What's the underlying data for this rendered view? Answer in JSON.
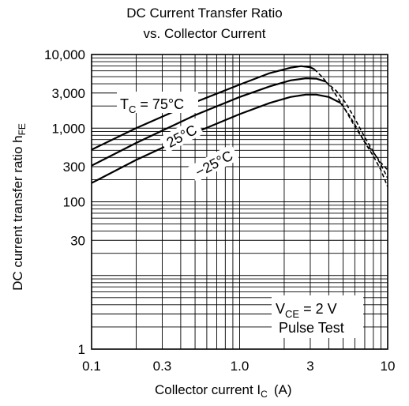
{
  "chart_data": {
    "type": "line",
    "title": "DC Current Transfer Ratio",
    "subtitle": "vs. Collector Current",
    "xlabel": {
      "text": "Collector current  I",
      "sub": "C",
      "unit": "(A)"
    },
    "ylabel": {
      "text": "DC current transfer ratio  h",
      "sub": "FE"
    },
    "xscale": "log",
    "yscale": "log",
    "xlim": [
      0.1,
      10
    ],
    "ylim": [
      1,
      10000
    ],
    "xticks": [
      {
        "value": 0.1,
        "label": "0.1"
      },
      {
        "value": 0.3,
        "label": "0.3"
      },
      {
        "value": 1,
        "label": "1.0"
      },
      {
        "value": 3,
        "label": "3"
      },
      {
        "value": 10,
        "label": "10"
      }
    ],
    "yticks": [
      {
        "value": 1,
        "label": "1"
      },
      {
        "value": 30,
        "label": "30"
      },
      {
        "value": 100,
        "label": "100"
      },
      {
        "value": 300,
        "label": "300"
      },
      {
        "value": 1000,
        "label": "1,000"
      },
      {
        "value": 3000,
        "label": "3,000"
      },
      {
        "value": 10000,
        "label": "10,000"
      }
    ],
    "grid": true,
    "series": [
      {
        "name": "TC = 75°C",
        "label_main": "T",
        "label_sub": "C",
        "label_rest": " = 75°C",
        "solid": [
          [
            0.1,
            510
          ],
          [
            0.2,
            1000
          ],
          [
            0.5,
            2250
          ],
          [
            1.0,
            3900
          ],
          [
            1.6,
            5600
          ],
          [
            2.2,
            6600
          ],
          [
            2.6,
            6950
          ],
          [
            3.0,
            6700
          ],
          [
            3.2,
            6300
          ]
        ],
        "dashed": [
          [
            3.2,
            6300
          ],
          [
            3.6,
            5000
          ],
          [
            4.2,
            3400
          ],
          [
            5.0,
            2000
          ],
          [
            6.0,
            1050
          ],
          [
            7.0,
            650
          ],
          [
            8.0,
            470
          ],
          [
            9.0,
            340
          ],
          [
            10.0,
            270
          ]
        ]
      },
      {
        "name": "25°C",
        "label_main": "25°C",
        "solid": [
          [
            0.1,
            310
          ],
          [
            0.2,
            630
          ],
          [
            0.5,
            1500
          ],
          [
            1.0,
            2650
          ],
          [
            1.6,
            3700
          ],
          [
            2.2,
            4450
          ],
          [
            2.8,
            4750
          ],
          [
            3.3,
            4700
          ],
          [
            3.8,
            4300
          ]
        ],
        "dashed": [
          [
            3.8,
            4300
          ],
          [
            4.5,
            3200
          ],
          [
            5.2,
            2200
          ],
          [
            6.0,
            1350
          ],
          [
            7.0,
            750
          ],
          [
            8.0,
            480
          ],
          [
            9.0,
            320
          ],
          [
            10.0,
            210
          ]
        ]
      },
      {
        "name": "−25°C",
        "label_main": "−25°C",
        "solid": [
          [
            0.1,
            180
          ],
          [
            0.2,
            370
          ],
          [
            0.5,
            870
          ],
          [
            1.0,
            1550
          ],
          [
            1.6,
            2200
          ],
          [
            2.2,
            2650
          ],
          [
            2.8,
            2850
          ],
          [
            3.3,
            2850
          ],
          [
            4.0,
            2650
          ],
          [
            4.8,
            2200
          ]
        ],
        "dashed": [
          [
            4.8,
            2200
          ],
          [
            5.5,
            1500
          ],
          [
            6.2,
            1000
          ],
          [
            7.0,
            640
          ],
          [
            8.0,
            420
          ],
          [
            9.0,
            270
          ],
          [
            10.0,
            160
          ]
        ]
      }
    ],
    "annotation": {
      "line1_main": "V",
      "line1_sub": "CE",
      "line1_rest": " = 2 V",
      "line2": "Pulse Test"
    }
  }
}
